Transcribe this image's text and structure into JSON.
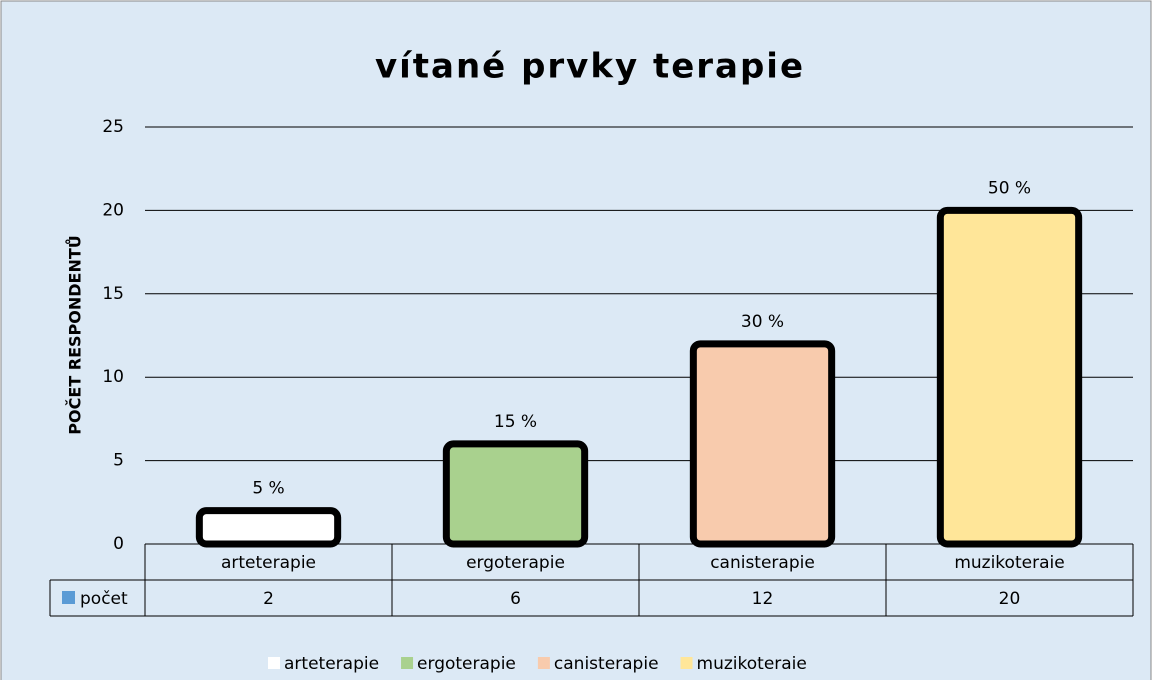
{
  "chart_data": {
    "type": "bar",
    "title": "vítané prvky terapie",
    "y_label": "POČET RESPONDENTŮ",
    "categories": [
      "arteterapie",
      "ergoterapie",
      "canisterapie",
      "muzikoteraie"
    ],
    "colors": [
      "#ffffff",
      "#a9d18e",
      "#f8cbad",
      "#ffe699"
    ],
    "series": [
      {
        "name": "počet",
        "color": "#5b9bd5",
        "values": [
          2,
          6,
          12,
          20
        ],
        "value_labels": [
          "5 %",
          "15 %",
          "30 %",
          "50 %"
        ]
      }
    ],
    "ylim": [
      0,
      25
    ],
    "yticks": [
      0,
      5,
      10,
      15,
      20,
      25
    ],
    "grid": true
  }
}
